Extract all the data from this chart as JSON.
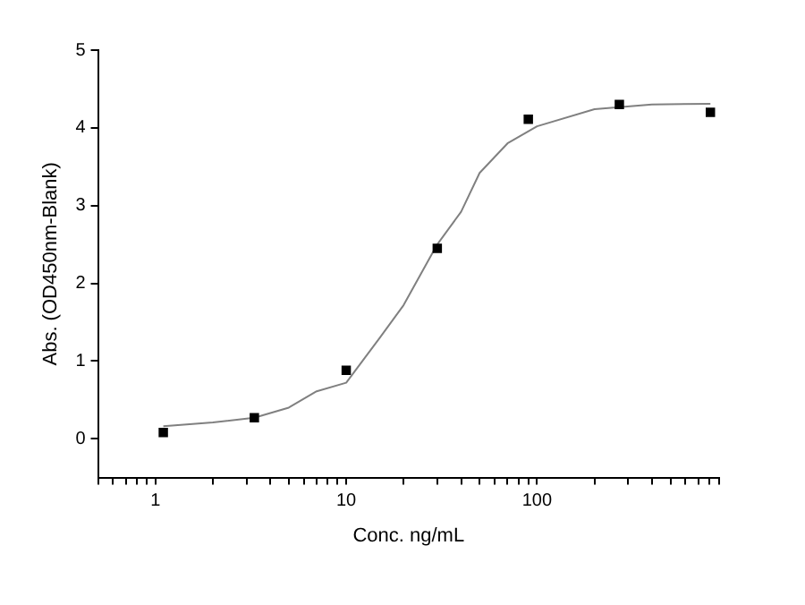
{
  "chart_data": {
    "type": "scatter",
    "xlabel": "Conc. ng/mL",
    "ylabel": "Abs. (OD450nm-Blank)",
    "log": "x",
    "grid": false,
    "legend": false,
    "xlim": [
      0.5,
      900
    ],
    "xticks": [
      {
        "value": 0.5,
        "label": null
      },
      {
        "value": 0.6,
        "label": null
      },
      {
        "value": 0.7,
        "label": null
      },
      {
        "value": 0.8,
        "label": null
      },
      {
        "value": 0.9,
        "label": null
      },
      1,
      {
        "value": 2,
        "label": null
      },
      {
        "value": 3,
        "label": null
      },
      {
        "value": 4,
        "label": null
      },
      {
        "value": 5,
        "label": null
      },
      {
        "value": 6,
        "label": null
      },
      {
        "value": 7,
        "label": null
      },
      {
        "value": 8,
        "label": null
      },
      {
        "value": 9,
        "label": null
      },
      10,
      {
        "value": 20,
        "label": null
      },
      {
        "value": 30,
        "label": null
      },
      {
        "value": 40,
        "label": null
      },
      {
        "value": 50,
        "label": null
      },
      {
        "value": 60,
        "label": null
      },
      {
        "value": 70,
        "label": null
      },
      {
        "value": 80,
        "label": null
      },
      {
        "value": 90,
        "label": null
      },
      100,
      {
        "value": 200,
        "label": null
      },
      {
        "value": 300,
        "label": null
      },
      {
        "value": 400,
        "label": null
      },
      {
        "value": 500,
        "label": null
      },
      {
        "value": 600,
        "label": null
      },
      {
        "value": 700,
        "label": null
      },
      {
        "value": 800,
        "label": null
      },
      {
        "value": 900,
        "label": null
      }
    ],
    "ylim": [
      -0.5,
      5
    ],
    "yticks": [
      0,
      1,
      2,
      3,
      4,
      5
    ],
    "series": [
      {
        "type": "scatter",
        "color": "#000000",
        "marker": "square",
        "x": [
          1.1,
          3.3,
          10,
          30,
          90,
          270,
          810
        ],
        "values": [
          0.08,
          0.27,
          0.88,
          2.45,
          4.11,
          4.3,
          4.2
        ]
      },
      {
        "type": "line",
        "color": "#808080",
        "marker": "none",
        "line_style": "solid",
        "x": [
          1.1,
          2,
          3.3,
          5,
          7,
          10,
          15,
          20,
          30,
          40,
          50,
          70,
          100,
          200,
          400,
          810
        ],
        "values": [
          0.16,
          0.21,
          0.27,
          0.4,
          0.61,
          0.72,
          1.3,
          1.72,
          2.5,
          2.92,
          3.42,
          3.8,
          4.02,
          4.24,
          4.3,
          4.31
        ]
      }
    ]
  }
}
